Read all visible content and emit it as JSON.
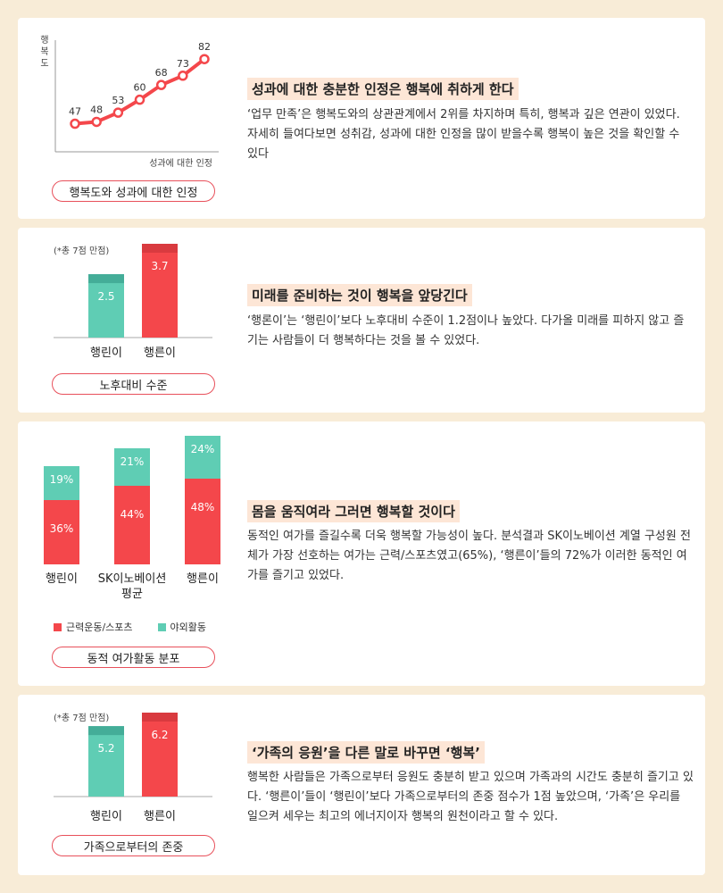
{
  "colors": {
    "red": "#f4474b",
    "red_dark": "#d93a3f",
    "teal": "#5fcdb4",
    "teal_dark": "#44ad98",
    "badge_border": "#e8505b",
    "heading_bg": "#fde6d6"
  },
  "sections": [
    {
      "badge": "행복도와 성과에 대한 인정",
      "heading": "성과에 대한 충분한 인정은 행복에 취하게 한다",
      "body": "‘업무 만족’은 행복도와의 상관관계에서 2위를 차지하며 특히, 행복과 깊은 연관이 있었다. 자세히 들여다보면 성취감, 성과에 대한 인정을 많이 받을수록 행복이 높은 것을 확인할 수 있다"
    },
    {
      "badge": "노후대비 수준",
      "heading": "미래를 준비하는 것이 행복을 앞당긴다",
      "body": "‘행론이’는 ‘행린이’보다 노후대비 수준이 1.2점이나 높았다. 다가올 미래를 피하지 않고 즐기는 사람들이 더 행복하다는 것을 볼 수 있었다."
    },
    {
      "badge": "동적 여가활동 분포",
      "heading": "몸을 움직여라 그러면 행복할 것이다",
      "body": "동적인 여가를 즐길수록 더욱 행복할 가능성이 높다. 분석결과 SK이노베이션 계열 구성원 전체가 가장 선호하는 여가는 근력/스포츠였고(65%), ‘행른이’들의 72%가 이러한 동적인 여가를 즐기고 있었다."
    },
    {
      "badge": "가족으로부터의 존중",
      "heading": "‘가족의 응원’을 다른 말로 바꾸면 ‘행복’",
      "body": "행복한 사람들은 가족으로부터 응원도 충분히 받고 있으며 가족과의 시간도 충분히 즐기고 있다. ‘행른이’들이 ‘행린이’보다 가족으로부터의 존중 점수가 1점 높았으며, ‘가족’은 우리를 일으켜 세우는 최고의 에너지이자 행복의 원천이라고 할 수 있다."
    }
  ],
  "chart_data": [
    {
      "type": "line",
      "ylabel": "행복도",
      "xlabel": "성과에 대한 인정",
      "values": [
        47,
        48,
        53,
        60,
        68,
        73,
        82
      ],
      "ylim": [
        40,
        85
      ]
    },
    {
      "type": "bar",
      "note": "(*총 7점 만점)",
      "categories": [
        "행린이",
        "행른이"
      ],
      "values": [
        2.5,
        3.7
      ],
      "ylim": [
        0,
        3.7
      ]
    },
    {
      "type": "bar",
      "stacked": true,
      "categories": [
        "행린이",
        "SK이노베이션 평균",
        "행른이"
      ],
      "series": [
        {
          "name": "근력운동/스포츠",
          "values": [
            36,
            44,
            48
          ]
        },
        {
          "name": "야외활동",
          "values": [
            19,
            21,
            24
          ]
        }
      ],
      "value_labels": [
        [
          "36%",
          "44%",
          "48%"
        ],
        [
          "19%",
          "21%",
          "24%"
        ]
      ],
      "legend_position": "bottom"
    },
    {
      "type": "bar",
      "note": "(*총 7점 만점)",
      "categories": [
        "행린이",
        "행른이"
      ],
      "values": [
        5.2,
        6.2
      ]
    }
  ]
}
